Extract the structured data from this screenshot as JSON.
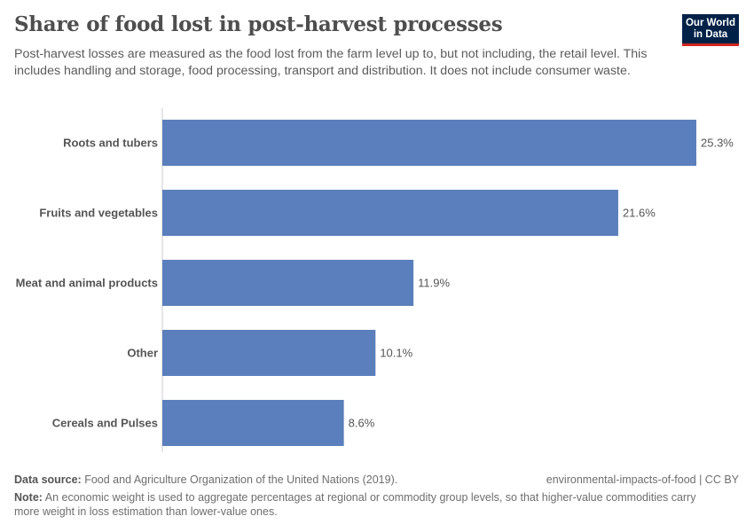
{
  "header": {
    "title": "Share of food lost in post-harvest processes",
    "subtitle": "Post-harvest losses are measured as the food lost from the farm level up to, but not including, the retail level. This includes handling and storage, food processing, transport and distribution. It does not include consumer waste.",
    "logo": "Our World in Data"
  },
  "chart_data": {
    "type": "bar",
    "orientation": "horizontal",
    "categories": [
      "Roots and tubers",
      "Fruits and vegetables",
      "Meat and animal products",
      "Other",
      "Cereals and Pulses"
    ],
    "values": [
      25.3,
      21.6,
      11.9,
      10.1,
      8.6
    ],
    "labels": [
      "25.3%",
      "21.6%",
      "11.9%",
      "10.1%",
      "8.6%"
    ],
    "unit": "%",
    "xlim": [
      0,
      25.3
    ],
    "grid": false,
    "bar_color": "#5b7fbc"
  },
  "footer": {
    "source_label": "Data source:",
    "source": "Food and Agriculture Organization of the United Nations (2019).",
    "license": "environmental-impacts-of-food | CC BY",
    "note_label": "Note:",
    "note": "An economic weight is used to aggregate percentages at regional or commodity group levels, so that higher-value commodities carry more weight in loss estimation than lower-value ones."
  }
}
